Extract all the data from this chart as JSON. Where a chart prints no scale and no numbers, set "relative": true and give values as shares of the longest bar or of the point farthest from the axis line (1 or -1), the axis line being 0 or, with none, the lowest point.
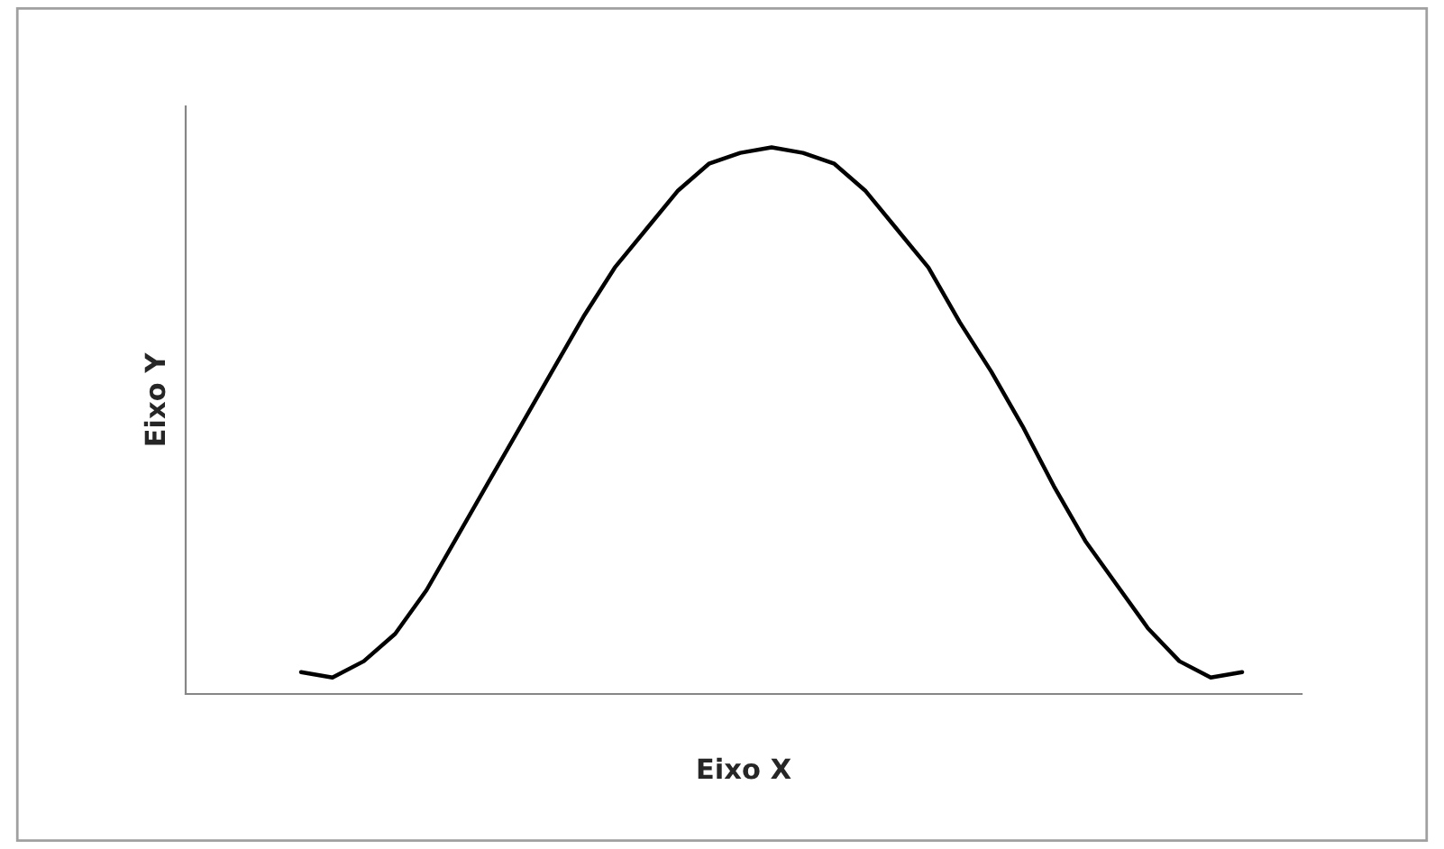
{
  "chart_data": {
    "type": "line",
    "relative": true,
    "xlabel": "Eixo X",
    "ylabel": "Eixo Y",
    "categories": [
      null,
      null,
      null,
      null,
      null,
      null,
      null,
      null,
      null,
      null,
      null,
      null,
      null,
      null,
      null,
      null,
      null,
      null,
      null,
      null,
      null,
      null,
      null,
      null,
      null,
      null,
      null,
      null,
      null,
      null,
      null
    ],
    "series": [
      {
        "color": "#000000",
        "values": [
          0.04,
          0.03,
          0.06,
          0.11,
          0.19,
          0.29,
          0.39,
          0.49,
          0.59,
          0.69,
          0.78,
          0.85,
          0.92,
          0.97,
          0.99,
          1.0,
          0.99,
          0.97,
          0.92,
          0.85,
          0.78,
          0.68,
          0.59,
          0.49,
          0.38,
          0.28,
          0.2,
          0.12,
          0.06,
          0.03,
          0.04
        ]
      }
    ],
    "grid": false,
    "legend": false
  }
}
